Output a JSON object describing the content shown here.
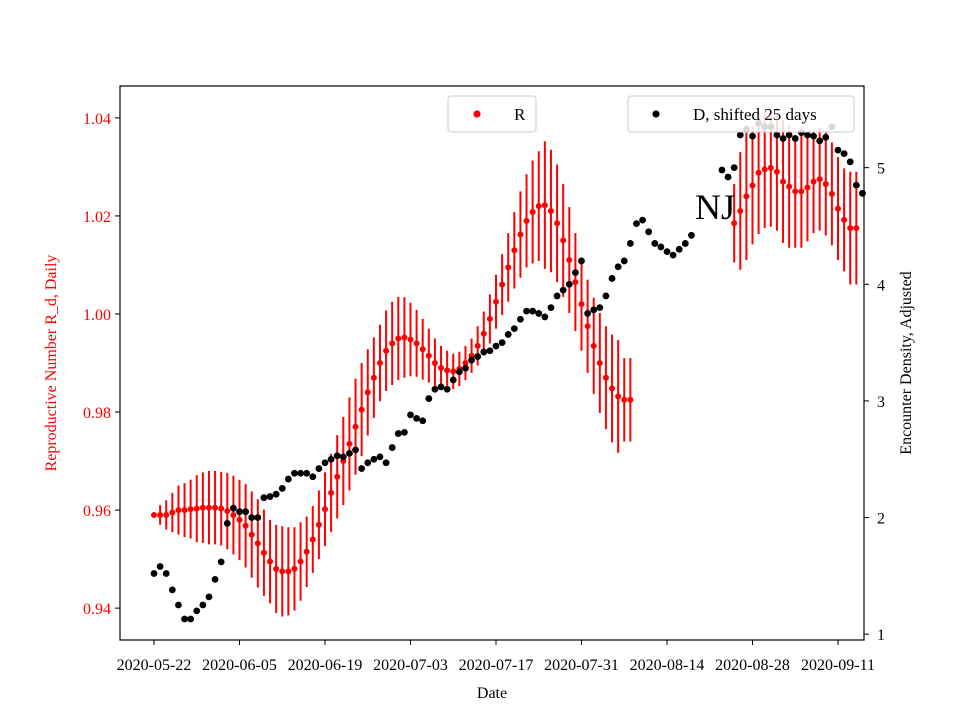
{
  "chart_data": {
    "type": "scatter",
    "xlabel": "Date",
    "ylabel_left": "Reproductive Number R_d, Daily",
    "ylabel_right": "Encounter Density, Adjusted",
    "annotation": "NJ",
    "x_start": "2020-05-22",
    "x_end": "2020-09-11",
    "x_ticks": [
      "2020-05-22",
      "2020-06-05",
      "2020-06-19",
      "2020-07-03",
      "2020-07-17",
      "2020-07-31",
      "2020-08-14",
      "2020-08-28",
      "2020-09-11"
    ],
    "ylim_left": [
      0.9335,
      1.0465
    ],
    "yticks_left": [
      "0.94",
      "0.96",
      "0.98",
      "1.00",
      "1.02",
      "1.04"
    ],
    "ylim_right": [
      0.95,
      5.7
    ],
    "yticks_right": [
      "1",
      "2",
      "3",
      "4",
      "5"
    ],
    "legend_left": {
      "label": "R",
      "color": "#ff0000",
      "position": "upper-center"
    },
    "legend_right": {
      "label": "D, shifted 25 days",
      "color": "#000000",
      "position": "upper-right"
    },
    "series_R": {
      "name": "R",
      "color": "#ff0000",
      "segments": [
        {
          "start": "2020-05-22",
          "values": [
            0.959,
            0.959,
            0.959,
            0.9595,
            0.96,
            0.96,
            0.9602,
            0.9603,
            0.9605,
            0.9605,
            0.9605,
            0.9603,
            0.9598,
            0.959,
            0.958,
            0.9568,
            0.955,
            0.9532,
            0.9513,
            0.9495,
            0.948,
            0.9475,
            0.9475,
            0.948,
            0.9495,
            0.9515,
            0.954,
            0.957,
            0.9602,
            0.9635,
            0.9668,
            0.97,
            0.9735,
            0.977,
            0.9805,
            0.984,
            0.987,
            0.99,
            0.9925,
            0.994,
            0.995,
            0.9952,
            0.9948,
            0.994,
            0.9928,
            0.9915,
            0.99,
            0.989,
            0.9885,
            0.9883,
            0.9888,
            0.99,
            0.9915,
            0.9935,
            0.996,
            0.999,
            1.0025,
            1.006,
            1.0095,
            1.013,
            1.0162,
            1.019,
            1.0208,
            1.022,
            1.0222,
            1.021,
            1.0185,
            1.015,
            1.011,
            1.0065,
            1.002,
            0.9975,
            0.9935,
            0.99,
            0.987,
            0.9848,
            0.9832,
            0.9825,
            0.9825
          ],
          "err": [
            0.0005,
            0.002,
            0.003,
            0.004,
            0.005,
            0.0055,
            0.006,
            0.0068,
            0.0072,
            0.0075,
            0.0075,
            0.0075,
            0.0078,
            0.008,
            0.0082,
            0.0085,
            0.0088,
            0.009,
            0.0088,
            0.0085,
            0.009,
            0.0092,
            0.009,
            0.0085,
            0.008,
            0.0072,
            0.0068,
            0.007,
            0.0075,
            0.008,
            0.0085,
            0.009,
            0.0095,
            0.0098,
            0.0095,
            0.0088,
            0.0082,
            0.0078,
            0.0082,
            0.0085,
            0.0085,
            0.0082,
            0.0075,
            0.0068,
            0.0062,
            0.0055,
            0.005,
            0.0045,
            0.004,
            0.0036,
            0.0035,
            0.0035,
            0.0035,
            0.004,
            0.0045,
            0.005,
            0.0055,
            0.0062,
            0.007,
            0.0078,
            0.0088,
            0.0095,
            0.0105,
            0.0112,
            0.013,
            0.0125,
            0.012,
            0.0115,
            0.0108,
            0.01,
            0.0095,
            0.0095,
            0.0098,
            0.0102,
            0.0105,
            0.011,
            0.0115,
            0.0085,
            0.0085
          ]
        },
        {
          "start": "2020-08-25",
          "values": [
            1.0185,
            1.021,
            1.024,
            1.0262,
            1.0288,
            1.0295,
            1.0298,
            1.029,
            1.027,
            1.026,
            1.025,
            1.025,
            1.0258,
            1.027,
            1.0275,
            1.0265,
            1.0245,
            1.0215,
            1.0192,
            1.0175,
            1.0175
          ],
          "err": [
            0.008,
            0.012,
            0.013,
            0.012,
            0.0125,
            0.012,
            0.012,
            0.012,
            0.0125,
            0.0125,
            0.0115,
            0.0115,
            0.011,
            0.0105,
            0.0105,
            0.0105,
            0.0105,
            0.0105,
            0.0105,
            0.0115,
            0.0115
          ]
        }
      ]
    },
    "series_D": {
      "name": "D, shifted 25 days",
      "color": "#000000",
      "segments": [
        {
          "start": "2020-05-22",
          "values": [
            1.52,
            1.58,
            1.52,
            1.38,
            1.25,
            1.13,
            1.13,
            1.2,
            1.25,
            1.32,
            1.47,
            1.62,
            1.95,
            2.08,
            2.05,
            2.05,
            2.0,
            2.0,
            2.17,
            2.18,
            2.2,
            2.25,
            2.33,
            2.38,
            2.38,
            2.38,
            2.35,
            2.42,
            2.47,
            2.5,
            2.53,
            2.52,
            2.55,
            2.58,
            2.42,
            2.47,
            2.5,
            2.52,
            2.47,
            2.6,
            2.72,
            2.73,
            2.88,
            2.85,
            2.83,
            3.02,
            3.1,
            3.12,
            3.1,
            3.18,
            3.25,
            3.28,
            3.35,
            3.38,
            3.42,
            3.43,
            3.47,
            3.5,
            3.57,
            3.62,
            3.7,
            3.77,
            3.77,
            3.75,
            3.72,
            3.8,
            3.9,
            3.95,
            4.0,
            4.1,
            4.2,
            3.75,
            3.78,
            3.8,
            3.9,
            4.05,
            4.15,
            4.2,
            4.35,
            4.52,
            4.55,
            4.45,
            4.35,
            4.32,
            4.28,
            4.25,
            4.3,
            4.35,
            4.42
          ]
        },
        {
          "start": "2020-08-23",
          "values": [
            4.98,
            4.92,
            5.0,
            5.28,
            5.33,
            5.27,
            5.38,
            5.35,
            5.35,
            5.28,
            5.25,
            5.28,
            5.25,
            5.3,
            5.28,
            5.27,
            5.23,
            5.26,
            5.35,
            5.15,
            5.12,
            5.05,
            4.85,
            4.78
          ]
        }
      ]
    }
  }
}
